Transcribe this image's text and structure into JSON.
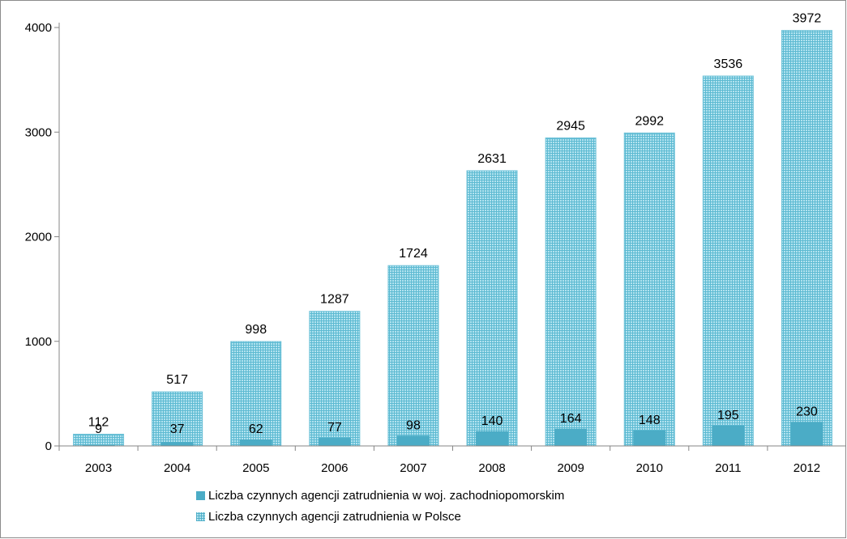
{
  "chart_data": {
    "type": "bar",
    "categories": [
      "2003",
      "2004",
      "2005",
      "2006",
      "2007",
      "2008",
      "2009",
      "2010",
      "2011",
      "2012"
    ],
    "series": [
      {
        "name": "Liczba czynnych agencji zatrudnienia w woj. zachodniopomorskim",
        "values": [
          9,
          37,
          62,
          77,
          98,
          140,
          164,
          148,
          195,
          230
        ],
        "color": "#4bacc6",
        "fill": "solid"
      },
      {
        "name": "Liczba czynnych agencji zatrudnienia w Polsce",
        "values": [
          112,
          517,
          998,
          1287,
          1724,
          2631,
          2945,
          2992,
          3536,
          3972
        ],
        "color": "#b3e3ef",
        "fill": "hatched"
      }
    ],
    "yticks": [
      "0",
      "1000",
      "2000",
      "3000",
      "4000"
    ],
    "ylim": [
      0,
      4000
    ],
    "overlap": true,
    "grid": false,
    "legend_position": "bottom"
  }
}
